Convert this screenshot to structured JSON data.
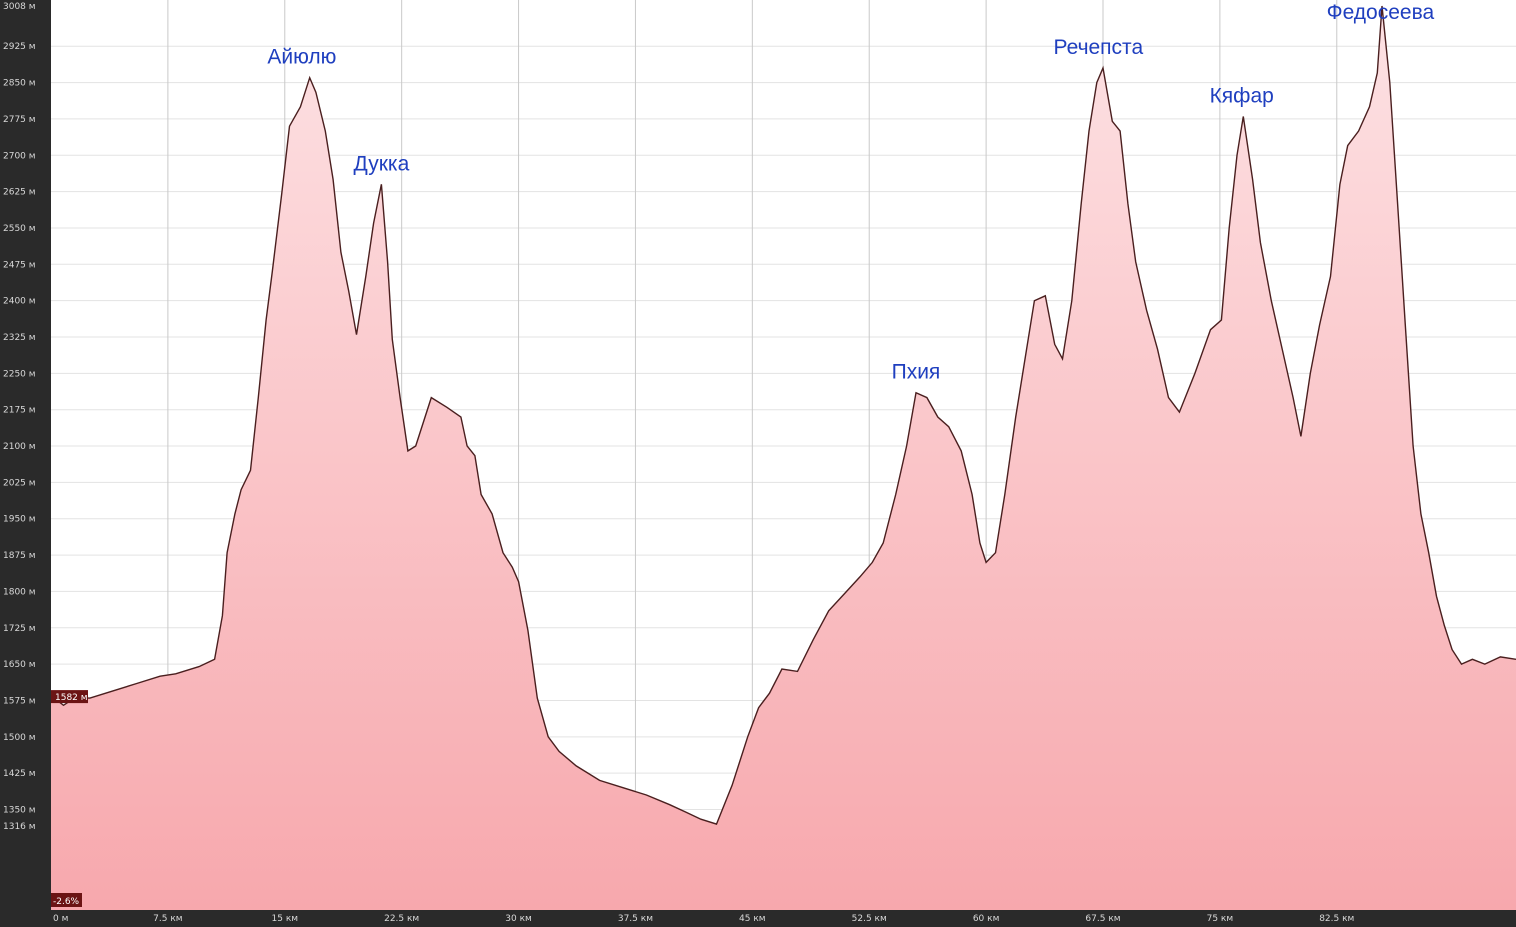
{
  "chart_data": {
    "type": "area",
    "title": "",
    "xlabel": "",
    "ylabel": "",
    "xlim": [
      0,
      94
    ],
    "ylim": [
      1316,
      3008
    ],
    "grid": true,
    "legend": "none",
    "colors": {
      "fill_top": "#fde2e4",
      "fill_bottom": "#f7a8ad",
      "line": "#4a1f1f",
      "grid": "#c9c9c9",
      "axis_bg": "#2a2a2a",
      "peak_label": "#1f3fbf"
    },
    "y_ticks": [
      {
        "value": 3008,
        "label": "3008 м"
      },
      {
        "value": 2925,
        "label": "2925 м"
      },
      {
        "value": 2850,
        "label": "2850 м"
      },
      {
        "value": 2775,
        "label": "2775 м"
      },
      {
        "value": 2700,
        "label": "2700 м"
      },
      {
        "value": 2625,
        "label": "2625 м"
      },
      {
        "value": 2550,
        "label": "2550 м"
      },
      {
        "value": 2475,
        "label": "2475 м"
      },
      {
        "value": 2400,
        "label": "2400 м"
      },
      {
        "value": 2325,
        "label": "2325 м"
      },
      {
        "value": 2250,
        "label": "2250 м"
      },
      {
        "value": 2175,
        "label": "2175 м"
      },
      {
        "value": 2100,
        "label": "2100 м"
      },
      {
        "value": 2025,
        "label": "2025 м"
      },
      {
        "value": 1950,
        "label": "1950 м"
      },
      {
        "value": 1875,
        "label": "1875 м"
      },
      {
        "value": 1800,
        "label": "1800 м"
      },
      {
        "value": 1725,
        "label": "1725 м"
      },
      {
        "value": 1650,
        "label": "1650 м"
      },
      {
        "value": 1575,
        "label": "1575 м"
      },
      {
        "value": 1500,
        "label": "1500 м"
      },
      {
        "value": 1425,
        "label": "1425 м"
      },
      {
        "value": 1350,
        "label": "1350 м"
      },
      {
        "value": 1316,
        "label": "1316 м"
      }
    ],
    "x_ticks": [
      {
        "value": 0,
        "label": "0 м"
      },
      {
        "value": 7.5,
        "label": "7.5 км"
      },
      {
        "value": 15,
        "label": "15 км"
      },
      {
        "value": 22.5,
        "label": "22.5 км"
      },
      {
        "value": 30,
        "label": "30 км"
      },
      {
        "value": 37.5,
        "label": "37.5 км"
      },
      {
        "value": 45,
        "label": "45 км"
      },
      {
        "value": 52.5,
        "label": "52.5 км"
      },
      {
        "value": 60,
        "label": "60 км"
      },
      {
        "value": 67.5,
        "label": "67.5 км"
      },
      {
        "value": 75,
        "label": "75 км"
      },
      {
        "value": 82.5,
        "label": "82.5 км"
      }
    ],
    "cursor_elevation_label": "1582 м",
    "grade_label": "-2.6%",
    "peaks": [
      {
        "name": "Айюлю",
        "x": 16.1,
        "y": 2860
      },
      {
        "name": "Дукка",
        "x": 21.2,
        "y": 2640
      },
      {
        "name": "Пхия",
        "x": 55.5,
        "y": 2210
      },
      {
        "name": "Речепста",
        "x": 67.2,
        "y": 2880
      },
      {
        "name": "Кяфар",
        "x": 76.4,
        "y": 2780
      },
      {
        "name": "Федосеева",
        "x": 85.3,
        "y": 3008
      }
    ],
    "series": [
      {
        "x": [
          0,
          0.8,
          1.5,
          2.5,
          4,
          5.5,
          7,
          8,
          9.5,
          10.5,
          11,
          11.3,
          11.8,
          12.2,
          12.8,
          13.3,
          13.8,
          14.2,
          14.8,
          15.3,
          16,
          16.6,
          17,
          17.6,
          18.1,
          18.6,
          19.1,
          19.6,
          20.2,
          20.7,
          21.2,
          21.6,
          21.9,
          22.4,
          22.9,
          23.4,
          24.4,
          25.4,
          26.3,
          26.7,
          27.2,
          27.6,
          28.3,
          29,
          29.6,
          30,
          30.6,
          31.2,
          31.9,
          32.6,
          33.7,
          35.2,
          36.7,
          38.2,
          39.7,
          40.7,
          41.7,
          42.7,
          43.7,
          44.7,
          45.4,
          46.1,
          46.9,
          47.9,
          48.9,
          49.9,
          50.9,
          51.9,
          52.7,
          53.4,
          54.2,
          54.9,
          55.5,
          56.2,
          56.9,
          57.6,
          58.4,
          59.1,
          59.6,
          60,
          60.6,
          61.2,
          61.9,
          62.6,
          63.1,
          63.8,
          64.4,
          64.9,
          65.5,
          66.1,
          66.6,
          67.1,
          67.5,
          68.1,
          68.6,
          69.1,
          69.6,
          70.3,
          71,
          71.7,
          72.4,
          73.4,
          74.4,
          75.1,
          75.6,
          76.1,
          76.5,
          77.1,
          77.6,
          78.3,
          79,
          79.7,
          80.2,
          80.8,
          81.4,
          82.1,
          82.7,
          83.2,
          83.9,
          84.6,
          85.1,
          85.4,
          85.9,
          86.4,
          86.9,
          87.4,
          87.9,
          88.4,
          88.9,
          89.4,
          89.9,
          90.5,
          91.2,
          92,
          93,
          94
        ],
        "y": [
          1585,
          1565,
          1580,
          1580,
          1595,
          1610,
          1625,
          1630,
          1645,
          1660,
          1750,
          1880,
          1960,
          2010,
          2050,
          2200,
          2360,
          2460,
          2620,
          2760,
          2800,
          2860,
          2830,
          2750,
          2650,
          2500,
          2420,
          2330,
          2450,
          2560,
          2640,
          2480,
          2320,
          2200,
          2090,
          2100,
          2200,
          2180,
          2160,
          2100,
          2080,
          2000,
          1960,
          1880,
          1850,
          1820,
          1720,
          1580,
          1500,
          1470,
          1440,
          1410,
          1395,
          1380,
          1360,
          1345,
          1330,
          1320,
          1400,
          1500,
          1560,
          1590,
          1640,
          1635,
          1700,
          1760,
          1795,
          1830,
          1860,
          1900,
          2000,
          2100,
          2210,
          2200,
          2160,
          2140,
          2090,
          2000,
          1900,
          1860,
          1880,
          2000,
          2160,
          2300,
          2400,
          2410,
          2310,
          2280,
          2400,
          2600,
          2750,
          2850,
          2880,
          2770,
          2750,
          2600,
          2480,
          2380,
          2300,
          2200,
          2170,
          2250,
          2340,
          2360,
          2550,
          2700,
          2780,
          2650,
          2520,
          2400,
          2300,
          2200,
          2120,
          2250,
          2350,
          2450,
          2640,
          2720,
          2750,
          2800,
          2870,
          3008,
          2850,
          2600,
          2350,
          2100,
          1960,
          1880,
          1790,
          1730,
          1680,
          1650,
          1660,
          1650,
          1665,
          1660
        ]
      }
    ]
  }
}
